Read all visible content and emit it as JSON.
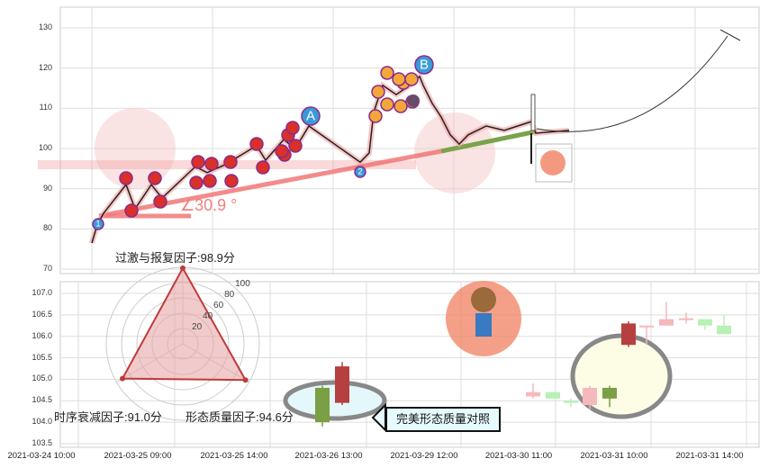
{
  "chart_data": [
    {
      "type": "line",
      "title": "",
      "ylim": [
        70,
        135
      ],
      "y_ticks": [
        "130",
        "120",
        "110",
        "100",
        "90",
        "80",
        "70"
      ],
      "grid": true,
      "series": [
        {
          "values": [
            76.5,
            81,
            83.9,
            91,
            85,
            91,
            87.7,
            95.5,
            94,
            96,
            100.7,
            97.1,
            102.2,
            100,
            105.6,
            96.6,
            98.9,
            109,
            115.7,
            113.4,
            115.7,
            117.9,
            115.7,
            111.2,
            107.8,
            103.4,
            101.1,
            103.4,
            105.6,
            104.5,
            105.6,
            106.7,
            103.8,
            104.5
          ]
        }
      ],
      "trendline_angle_label": "∠30.9 °",
      "point_labels": [
        "1",
        "A",
        "2",
        "B"
      ],
      "colors": {
        "price": "#222222",
        "trend_red": "#f07878",
        "trend_green": "#7aa34a",
        "marker_red": "#d9302a",
        "marker_orange": "#f3a73a",
        "marker_blue": "#3a9ad9",
        "marker_border": "#8a2b8a"
      }
    },
    {
      "type": "candlestick",
      "ylim": [
        103.4,
        107.2
      ],
      "y_ticks": [
        "107.0",
        "106.5",
        "106.0",
        "105.5",
        "105.0",
        "104.5",
        "104.0",
        "103.5"
      ],
      "x_ticks": [
        "2021-03-24 10:00",
        "2021-03-25 09:00",
        "2021-03-25 14:00",
        "2021-03-26 13:00",
        "2021-03-29 12:00",
        "2021-03-30 11:00",
        "2021-03-31 10:00",
        "2021-03-31 14:00"
      ],
      "candles": [
        {
          "o": 104.8,
          "h": 104.85,
          "l": 103.9,
          "c": 104.0,
          "faded": false
        },
        {
          "o": 104.45,
          "h": 105.4,
          "l": 104.4,
          "c": 105.3,
          "faded": false
        },
        {
          "o": 104.6,
          "h": 104.9,
          "l": 104.55,
          "c": 104.7,
          "faded": true
        },
        {
          "o": 104.7,
          "h": 104.7,
          "l": 104.55,
          "c": 104.55,
          "faded": true
        },
        {
          "o": 104.5,
          "h": 104.55,
          "l": 104.35,
          "c": 104.45,
          "faded": true
        },
        {
          "o": 104.4,
          "h": 104.85,
          "l": 104.3,
          "c": 104.8,
          "faded": true
        },
        {
          "o": 104.8,
          "h": 104.85,
          "l": 104.35,
          "c": 104.55,
          "faded": false
        },
        {
          "o": 105.8,
          "h": 106.35,
          "l": 105.75,
          "c": 106.3,
          "faded": false
        },
        {
          "o": 106.25,
          "h": 106.25,
          "l": 105.8,
          "c": 106.25,
          "faded": true
        },
        {
          "o": 106.25,
          "h": 106.8,
          "l": 106.25,
          "c": 106.4,
          "faded": true
        },
        {
          "o": 106.4,
          "h": 106.55,
          "l": 106.3,
          "c": 106.42,
          "faded": true
        },
        {
          "o": 106.4,
          "h": 106.4,
          "l": 106.15,
          "c": 106.25,
          "faded": true
        },
        {
          "o": 106.25,
          "h": 106.5,
          "l": 106.05,
          "c": 106.05,
          "faded": true
        }
      ],
      "colors": {
        "up": "#b5403f",
        "down": "#7a9f45",
        "up_faded": "#f4b8bd",
        "down_faded": "#b8f0b8"
      }
    },
    {
      "type": "radar",
      "rings": [
        "20",
        "40",
        "60",
        "80",
        "100"
      ],
      "axes": [
        {
          "label": "过激与报复因子:98.9分",
          "value": 98.9
        },
        {
          "label": "形态质量因子:94.6分",
          "value": 94.6
        },
        {
          "label": "时序衰减因子:91.0分",
          "value": 91.0
        }
      ],
      "colors": {
        "fill": "#e8a8a8",
        "stroke": "#c0393b"
      }
    }
  ],
  "callout": {
    "text": "完美形态质量对照"
  }
}
